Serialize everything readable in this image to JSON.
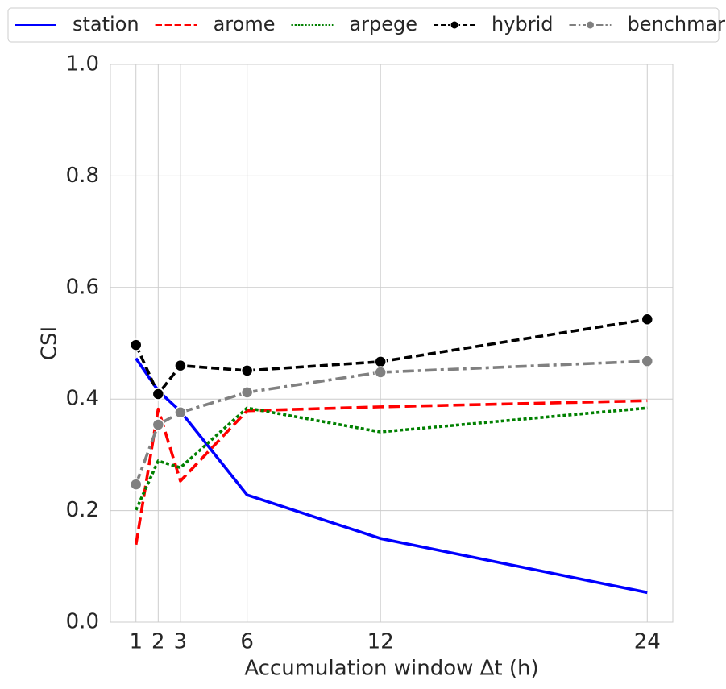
{
  "chart_data": {
    "type": "line",
    "x_label": "Accumulation window Δt (h)",
    "y_label": "CSI",
    "x": [
      1,
      2,
      3,
      6,
      12,
      24
    ],
    "xlim": [
      -0.15,
      25.15
    ],
    "xticks": [
      1,
      2,
      3,
      6,
      12,
      24
    ],
    "ylim": [
      0,
      1
    ],
    "yticks": [
      {
        "value": 0,
        "label": "0.0"
      },
      0.2,
      0.4,
      0.6,
      0.8,
      {
        "value": 1,
        "label": "1.0"
      }
    ],
    "grid": true,
    "legend": "top",
    "series": [
      {
        "name": "station",
        "color": "#0000ff",
        "linestyle": "solid",
        "marker": "none",
        "values": [
          0.473,
          0.415,
          0.378,
          0.228,
          0.15,
          0.053
        ]
      },
      {
        "name": "arome",
        "color": "#ff0000",
        "linestyle": "dashed",
        "marker": "none",
        "values": [
          0.139,
          0.382,
          0.253,
          0.379,
          0.386,
          0.397
        ]
      },
      {
        "name": "arpege",
        "color": "#008000",
        "linestyle": "dotted",
        "marker": "none",
        "values": [
          0.201,
          0.289,
          0.277,
          0.384,
          0.341,
          0.384
        ]
      },
      {
        "name": "hybrid",
        "color": "#000000",
        "linestyle": "dashed",
        "marker": "circle",
        "values": [
          0.497,
          0.409,
          0.46,
          0.451,
          0.467,
          0.543
        ]
      },
      {
        "name": "benchmark",
        "color": "#808080",
        "linestyle": "dashdot",
        "marker": "circle",
        "values": [
          0.247,
          0.354,
          0.376,
          0.412,
          0.448,
          0.468
        ]
      }
    ]
  }
}
